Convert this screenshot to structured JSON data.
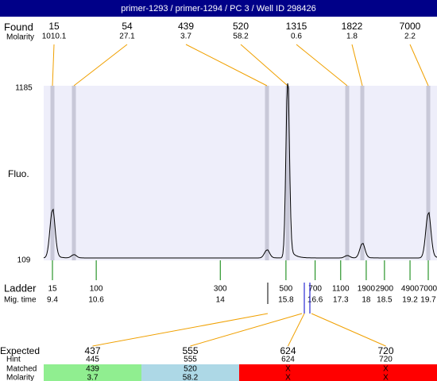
{
  "title": "primer-1293 / primer-1294 / PC 3 / Well ID 298426",
  "found": {
    "label": "Found",
    "sub_label": "Molarity",
    "peaks": [
      {
        "size": "15",
        "molarity": "1010.1"
      },
      {
        "size": "54",
        "molarity": "27.1"
      },
      {
        "size": "439",
        "molarity": "3.7"
      },
      {
        "size": "520",
        "molarity": "58.2"
      },
      {
        "size": "1315",
        "molarity": "0.6"
      },
      {
        "size": "1822",
        "molarity": "1.8"
      },
      {
        "size": "7000",
        "molarity": "2.2"
      }
    ]
  },
  "y_axis": {
    "label": "Fluo.",
    "top": "1185",
    "bottom": "109"
  },
  "ladder": {
    "label": "Ladder",
    "sub_label": "Mig. time",
    "sizes": [
      "15",
      "100",
      "300",
      "500",
      "700",
      "1100",
      "1900",
      "2900",
      "4900",
      "7000"
    ],
    "mig_times": [
      9.4,
      10.6,
      14,
      15.8,
      16.6,
      17.3,
      18,
      18.5,
      19.2,
      19.7
    ]
  },
  "expected": {
    "labels": [
      "Expected",
      "Hint",
      "Matched",
      "Molarity"
    ],
    "columns": [
      {
        "expected": "437",
        "hint": "445",
        "matched": "439",
        "molarity": "3.7",
        "color": "#90ee90"
      },
      {
        "expected": "555",
        "hint": "555",
        "matched": "520",
        "molarity": "58.2",
        "color": "#add8e6"
      },
      {
        "expected": "624",
        "hint": "624",
        "matched": "X",
        "molarity": "X",
        "color": "#ff0000"
      },
      {
        "expected": "720",
        "hint": "720",
        "matched": "X",
        "molarity": "X",
        "color": "#ff0000"
      }
    ]
  }
}
